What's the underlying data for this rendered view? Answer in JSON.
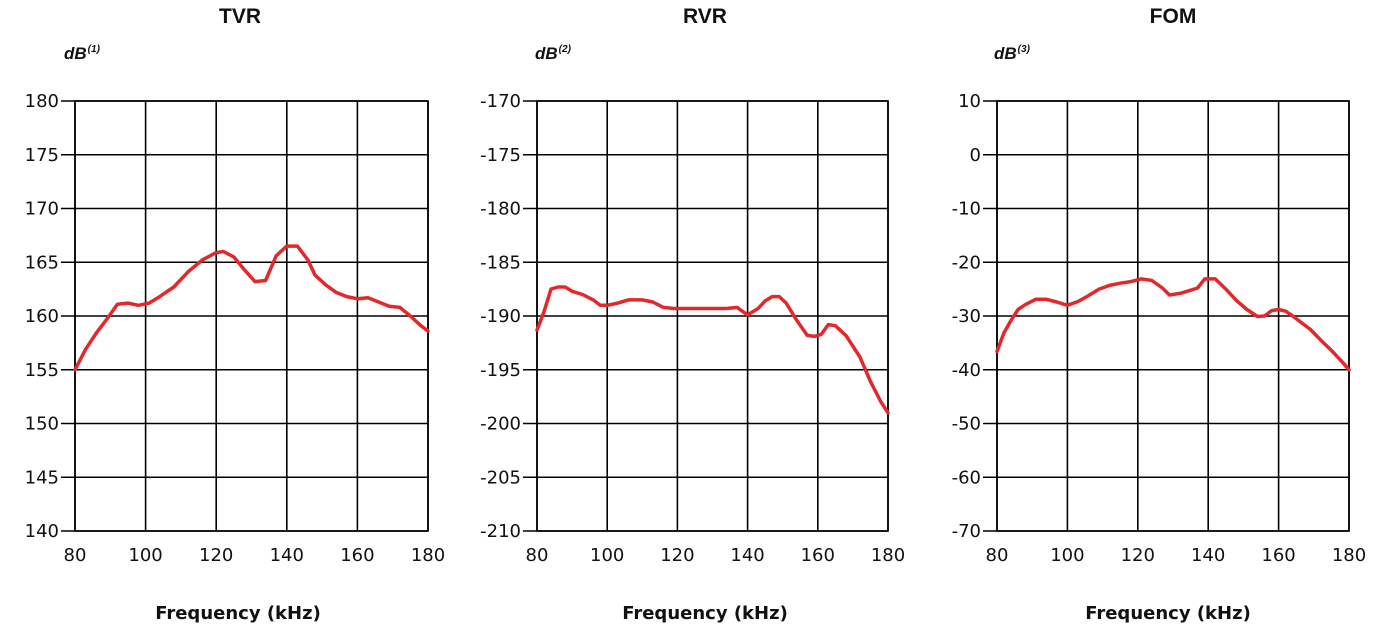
{
  "chart_data": [
    {
      "type": "line",
      "title": "TVR",
      "ylabel": "dB",
      "ylabel_note": "(1)",
      "xlabel": "Frequency (kHz)",
      "xlim": [
        80,
        180
      ],
      "ylim": [
        140,
        180
      ],
      "xticks": [
        80,
        100,
        120,
        140,
        160,
        180
      ],
      "yticks": [
        180,
        175,
        170,
        165,
        160,
        155,
        150,
        145,
        140
      ],
      "grid": true,
      "color": "#e3282b",
      "series": [
        {
          "x": [
            80,
            83,
            86,
            89,
            92,
            95,
            98,
            101,
            104,
            108,
            112,
            116,
            120,
            122,
            125,
            128,
            131,
            134,
            137,
            140,
            143,
            146,
            148,
            151,
            154,
            157,
            160,
            163,
            166,
            169,
            172,
            175,
            178,
            180
          ],
          "y": [
            155,
            156.9,
            158.4,
            159.7,
            161.1,
            161.2,
            161,
            161.2,
            161.8,
            162.7,
            164.1,
            165.2,
            165.9,
            166,
            165.5,
            164.3,
            163.2,
            163.3,
            165.6,
            166.5,
            166.5,
            165.2,
            163.8,
            162.9,
            162.2,
            161.8,
            161.6,
            161.7,
            161.3,
            160.9,
            160.8,
            160,
            159.1,
            158.6
          ]
        }
      ]
    },
    {
      "type": "line",
      "title": "RVR",
      "ylabel": "dB",
      "ylabel_note": "(2)",
      "xlabel": "Frequency (kHz)",
      "xlim": [
        80,
        180
      ],
      "ylim": [
        -210,
        -170
      ],
      "xticks": [
        80,
        100,
        120,
        140,
        160,
        180
      ],
      "yticks": [
        -170,
        -175,
        -180,
        -185,
        -190,
        -195,
        -200,
        -205,
        -210
      ],
      "grid": true,
      "color": "#e3282b",
      "series": [
        {
          "x": [
            80,
            82,
            84,
            86,
            88,
            90,
            93,
            96,
            98,
            100,
            103,
            106,
            110,
            113,
            116,
            119,
            122,
            126,
            130,
            134,
            137,
            140,
            143,
            145,
            147,
            149,
            151,
            154,
            157,
            159,
            161,
            163,
            165,
            168,
            172,
            175,
            178,
            180
          ],
          "y": [
            -191.3,
            -189.6,
            -187.5,
            -187.3,
            -187.3,
            -187.7,
            -188,
            -188.5,
            -189,
            -189,
            -188.8,
            -188.5,
            -188.5,
            -188.7,
            -189.2,
            -189.3,
            -189.3,
            -189.3,
            -189.3,
            -189.3,
            -189.2,
            -189.9,
            -189.3,
            -188.6,
            -188.2,
            -188.2,
            -188.8,
            -190.4,
            -191.8,
            -191.9,
            -191.7,
            -190.8,
            -190.9,
            -191.8,
            -193.8,
            -196.1,
            -198,
            -199
          ]
        }
      ]
    },
    {
      "type": "line",
      "title": "FOM",
      "ylabel": "dB",
      "ylabel_note": "(3)",
      "xlabel": "Frequency (kHz)",
      "xlim": [
        80,
        180
      ],
      "ylim": [
        -70,
        10
      ],
      "xticks": [
        80,
        100,
        120,
        140,
        160,
        180
      ],
      "yticks": [
        10,
        0,
        -10,
        -20,
        -30,
        -40,
        -50,
        -60,
        -70
      ],
      "grid": true,
      "color": "#e3282b",
      "series": [
        {
          "x": [
            80,
            82,
            84,
            86,
            88,
            91,
            94,
            97,
            100,
            103,
            106,
            109,
            112,
            115,
            118,
            121,
            124,
            127,
            129,
            132,
            134,
            137,
            139,
            142,
            145,
            148,
            151,
            154,
            156,
            158,
            160,
            162,
            164,
            166,
            169,
            172,
            175,
            178,
            180
          ],
          "y": [
            -36.6,
            -33.1,
            -30.8,
            -28.8,
            -27.9,
            -26.9,
            -26.9,
            -27.4,
            -28,
            -27.3,
            -26.2,
            -25,
            -24.3,
            -23.9,
            -23.6,
            -23.1,
            -23.4,
            -24.8,
            -26.1,
            -25.8,
            -25.4,
            -24.8,
            -23.1,
            -23.1,
            -25,
            -27.1,
            -28.8,
            -30.1,
            -30,
            -29,
            -28.8,
            -29.1,
            -30,
            -31,
            -32.5,
            -34.5,
            -36.4,
            -38.5,
            -40
          ]
        }
      ]
    }
  ]
}
